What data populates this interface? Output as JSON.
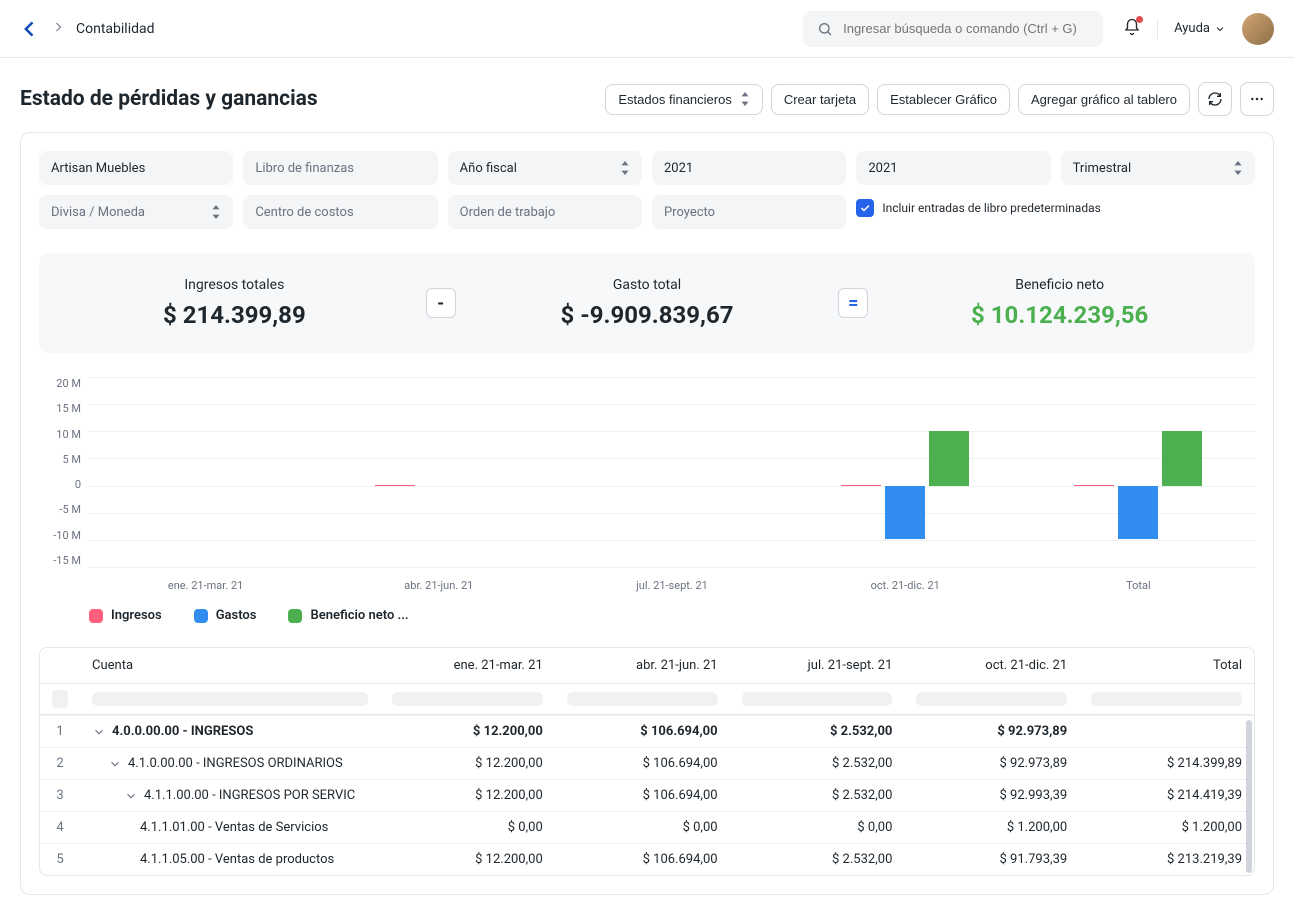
{
  "header": {
    "breadcrumb": "Contabilidad",
    "search_placeholder": "Ingresar búsqueda o comando (Ctrl + G)",
    "help_label": "Ayuda"
  },
  "page": {
    "title": "Estado de pérdidas y ganancias",
    "actions": {
      "financial_statements": "Estados financieros",
      "create_card": "Crear tarjeta",
      "set_chart": "Establecer Gráfico",
      "add_chart": "Agregar gráfico al tablero"
    }
  },
  "filters": {
    "company": "Artisan Muebles",
    "finance_book": "Libro de finanzas",
    "fiscal_label": "Año fiscal",
    "year1": "2021",
    "year2": "2021",
    "periodicity": "Trimestral",
    "currency": "Divisa / Moneda",
    "cost_center": "Centro de costos",
    "work_order": "Orden de trabajo",
    "project": "Proyecto",
    "include_default": "Incluir entradas de libro predeterminadas"
  },
  "summary": {
    "income_label": "Ingresos totales",
    "income_value": "$ 214.399,89",
    "expense_label": "Gasto total",
    "expense_value": "$ -9.909.839,67",
    "profit_label": "Beneficio neto",
    "profit_value": "$ 10.124.239,56",
    "minus": "-",
    "equals": "="
  },
  "chart": {
    "type": "bar",
    "colors": {
      "income": "#ff5f7e",
      "expense": "#318ef0",
      "profit": "#4caf50",
      "grid": "#eef0f2"
    },
    "ylim": [
      -15,
      20
    ],
    "yticks": [
      "20 M",
      "15 M",
      "10 M",
      "5 M",
      "0",
      "-5 M",
      "-10 M",
      "-15 M"
    ],
    "xticks": [
      "ene. 21-mar. 21",
      "abr. 21-jun. 21",
      "jul. 21-sept. 21",
      "oct. 21-dic. 21",
      "Total"
    ],
    "series": [
      {
        "income": 0.01,
        "expense": 0,
        "profit": 0
      },
      {
        "income": 0.1,
        "expense": 0,
        "profit": 0
      },
      {
        "income": 0.01,
        "expense": 0,
        "profit": 0
      },
      {
        "income": 0.09,
        "expense": -9.9,
        "profit": 10.1
      },
      {
        "income": 0.2,
        "expense": -9.9,
        "profit": 10.1
      }
    ],
    "legend": {
      "income": "Ingresos",
      "expense": "Gastos",
      "profit": "Beneficio neto ..."
    }
  },
  "table": {
    "columns": [
      "Cuenta",
      "ene. 21-mar. 21",
      "abr. 21-jun. 21",
      "jul. 21-sept. 21",
      "oct. 21-dic. 21",
      "Total"
    ],
    "rows": [
      {
        "n": "1",
        "indent": 0,
        "chev": true,
        "bold": true,
        "account": "4.0.0.00.00 - INGRESOS",
        "v": [
          "$ 12.200,00",
          "$ 106.694,00",
          "$ 2.532,00",
          "$ 92.973,89",
          ""
        ]
      },
      {
        "n": "2",
        "indent": 1,
        "chev": true,
        "bold": false,
        "account": "4.1.0.00.00 - INGRESOS ORDINARIOS",
        "v": [
          "$ 12.200,00",
          "$ 106.694,00",
          "$ 2.532,00",
          "$ 92.973,89",
          "$ 214.399,89"
        ]
      },
      {
        "n": "3",
        "indent": 2,
        "chev": true,
        "bold": false,
        "account": "4.1.1.00.00 - INGRESOS POR SERVIC",
        "v": [
          "$ 12.200,00",
          "$ 106.694,00",
          "$ 2.532,00",
          "$ 92.993,39",
          "$ 214.419,39"
        ]
      },
      {
        "n": "4",
        "indent": 3,
        "chev": false,
        "bold": false,
        "account": "4.1.1.01.00 - Ventas de Servicios",
        "v": [
          "$ 0,00",
          "$ 0,00",
          "$ 0,00",
          "$ 1.200,00",
          "$ 1.200,00"
        ]
      },
      {
        "n": "5",
        "indent": 3,
        "chev": false,
        "bold": false,
        "account": "4.1.1.05.00 - Ventas de productos",
        "v": [
          "$ 12.200,00",
          "$ 106.694,00",
          "$ 2.532,00",
          "$ 91.793,39",
          "$ 213.219,39"
        ]
      }
    ]
  }
}
